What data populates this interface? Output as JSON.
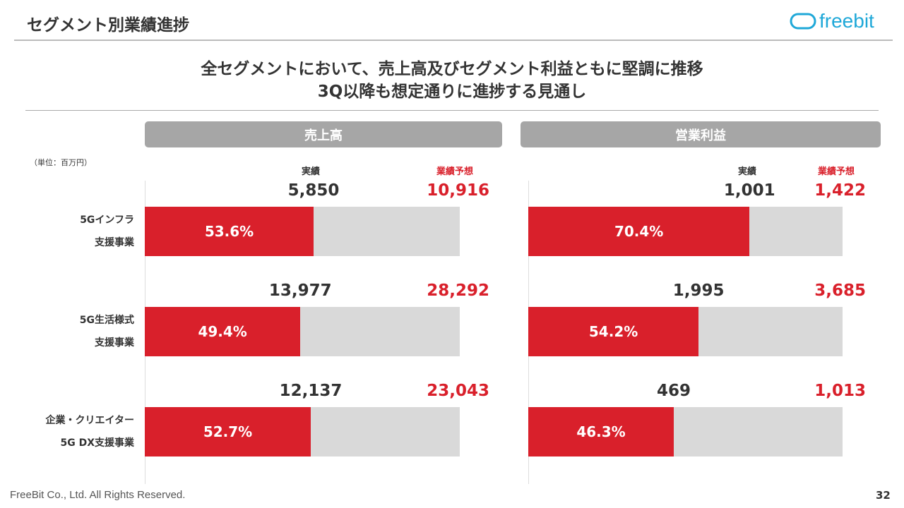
{
  "header": {
    "title": "セグメント別業績進捗",
    "logo_text": "freebit"
  },
  "headline": {
    "line1": "全セグメントにおいて、売上高及びセグメント利益ともに堅調に推移",
    "line2": "3Q以降も想定通りに進捗する見通し"
  },
  "unit": "（単位：百万円）",
  "colors": {
    "accent": "#d9202b",
    "track": "#d9d9d9",
    "logo": "#1fa8d8"
  },
  "segments": [
    {
      "line1": "5Gインフラ",
      "line2": "支援事業"
    },
    {
      "line1": "5G生活様式",
      "line2": "支援事業"
    },
    {
      "line1": "企業・クリエイター",
      "line2": "5G DX支援事業"
    }
  ],
  "chart_data": [
    {
      "type": "bar",
      "title": "売上高",
      "actual_label": "実績",
      "forecast_label": "業績予想",
      "categories": [
        "5Gインフラ支援事業",
        "5G生活様式支援事業",
        "企業・クリエイター5G DX支援事業"
      ],
      "actual": [
        "5,850",
        "13,977",
        "12,137"
      ],
      "forecast": [
        "10,916",
        "28,292",
        "23,043"
      ],
      "progress_pct": [
        53.6,
        49.4,
        52.7
      ],
      "progress_labels": [
        "53.6%",
        "49.4%",
        "52.7%"
      ]
    },
    {
      "type": "bar",
      "title": "営業利益",
      "actual_label": "実績",
      "forecast_label": "業績予想",
      "categories": [
        "5Gインフラ支援事業",
        "5G生活様式支援事業",
        "企業・クリエイター5G DX支援事業"
      ],
      "actual": [
        "1,001",
        "1,995",
        "469"
      ],
      "forecast": [
        "1,422",
        "3,685",
        "1,013"
      ],
      "progress_pct": [
        70.4,
        54.2,
        46.3
      ],
      "progress_labels": [
        "70.4%",
        "54.2%",
        "46.3%"
      ]
    }
  ],
  "footer": {
    "copyright": "FreeBit Co., Ltd. All Rights Reserved.",
    "page": "32"
  }
}
